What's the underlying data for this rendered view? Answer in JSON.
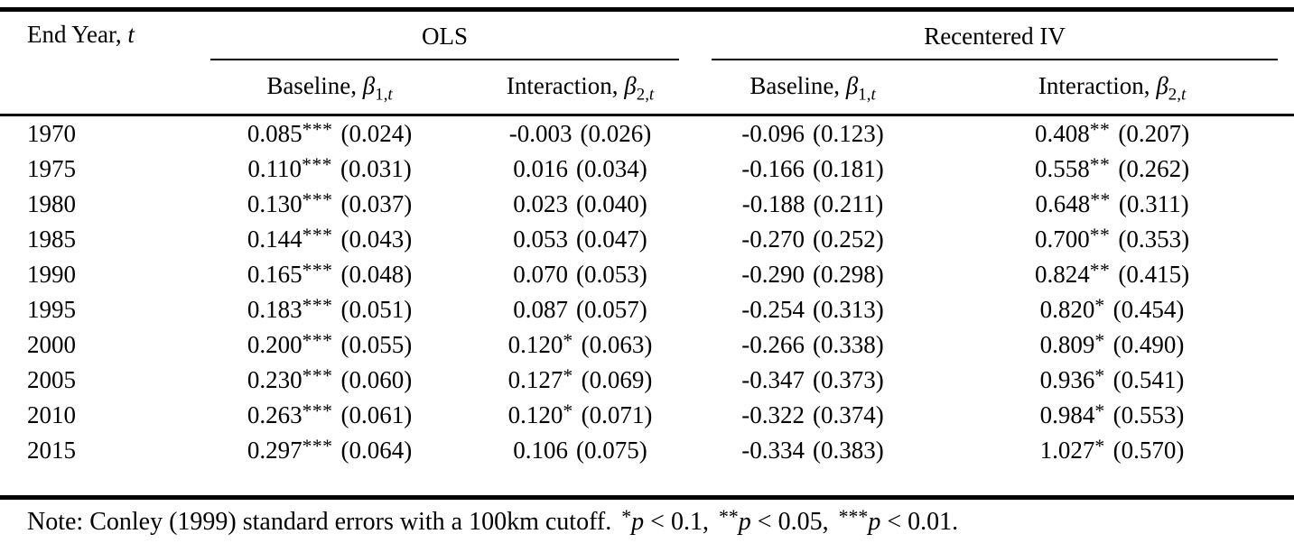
{
  "table": {
    "year_header": {
      "prefix": "End Year,",
      "var": "t"
    },
    "groups": [
      {
        "label": "OLS"
      },
      {
        "label": "Recentered IV"
      }
    ],
    "columns": [
      {
        "prefix": "Baseline,",
        "symbol": "β",
        "sub_num": "1,",
        "sub_var": "t"
      },
      {
        "prefix": "Interaction,",
        "symbol": "β",
        "sub_num": "2,",
        "sub_var": "t"
      },
      {
        "prefix": "Baseline,",
        "symbol": "β",
        "sub_num": "1,",
        "sub_var": "t"
      },
      {
        "prefix": "Interaction,",
        "symbol": "β",
        "sub_num": "2,",
        "sub_var": "t"
      }
    ],
    "rows": [
      {
        "year": "1970",
        "cells": [
          {
            "e": "0.085",
            "s": "***",
            "se": "(0.024)"
          },
          {
            "e": "-0.003",
            "s": "",
            "se": "(0.026)"
          },
          {
            "e": "-0.096",
            "s": "",
            "se": "(0.123)"
          },
          {
            "e": "0.408",
            "s": "**",
            "se": "(0.207)"
          }
        ]
      },
      {
        "year": "1975",
        "cells": [
          {
            "e": "0.110",
            "s": "***",
            "se": "(0.031)"
          },
          {
            "e": "0.016",
            "s": "",
            "se": "(0.034)"
          },
          {
            "e": "-0.166",
            "s": "",
            "se": "(0.181)"
          },
          {
            "e": "0.558",
            "s": "**",
            "se": "(0.262)"
          }
        ]
      },
      {
        "year": "1980",
        "cells": [
          {
            "e": "0.130",
            "s": "***",
            "se": "(0.037)"
          },
          {
            "e": "0.023",
            "s": "",
            "se": "(0.040)"
          },
          {
            "e": "-0.188",
            "s": "",
            "se": "(0.211)"
          },
          {
            "e": "0.648",
            "s": "**",
            "se": "(0.311)"
          }
        ]
      },
      {
        "year": "1985",
        "cells": [
          {
            "e": "0.144",
            "s": "***",
            "se": "(0.043)"
          },
          {
            "e": "0.053",
            "s": "",
            "se": "(0.047)"
          },
          {
            "e": "-0.270",
            "s": "",
            "se": "(0.252)"
          },
          {
            "e": "0.700",
            "s": "**",
            "se": "(0.353)"
          }
        ]
      },
      {
        "year": "1990",
        "cells": [
          {
            "e": "0.165",
            "s": "***",
            "se": "(0.048)"
          },
          {
            "e": "0.070",
            "s": "",
            "se": "(0.053)"
          },
          {
            "e": "-0.290",
            "s": "",
            "se": "(0.298)"
          },
          {
            "e": "0.824",
            "s": "**",
            "se": "(0.415)"
          }
        ]
      },
      {
        "year": "1995",
        "cells": [
          {
            "e": "0.183",
            "s": "***",
            "se": "(0.051)"
          },
          {
            "e": "0.087",
            "s": "",
            "se": "(0.057)"
          },
          {
            "e": "-0.254",
            "s": "",
            "se": "(0.313)"
          },
          {
            "e": "0.820",
            "s": "*",
            "se": "(0.454)"
          }
        ]
      },
      {
        "year": "2000",
        "cells": [
          {
            "e": "0.200",
            "s": "***",
            "se": "(0.055)"
          },
          {
            "e": "0.120",
            "s": "*",
            "se": "(0.063)"
          },
          {
            "e": "-0.266",
            "s": "",
            "se": "(0.338)"
          },
          {
            "e": "0.809",
            "s": "*",
            "se": "(0.490)"
          }
        ]
      },
      {
        "year": "2005",
        "cells": [
          {
            "e": "0.230",
            "s": "***",
            "se": "(0.060)"
          },
          {
            "e": "0.127",
            "s": "*",
            "se": "(0.069)"
          },
          {
            "e": "-0.347",
            "s": "",
            "se": "(0.373)"
          },
          {
            "e": "0.936",
            "s": "*",
            "se": "(0.541)"
          }
        ]
      },
      {
        "year": "2010",
        "cells": [
          {
            "e": "0.263",
            "s": "***",
            "se": "(0.061)"
          },
          {
            "e": "0.120",
            "s": "*",
            "se": "(0.071)"
          },
          {
            "e": "-0.322",
            "s": "",
            "se": "(0.374)"
          },
          {
            "e": "0.984",
            "s": "*",
            "se": "(0.553)"
          }
        ]
      },
      {
        "year": "2015",
        "cells": [
          {
            "e": "0.297",
            "s": "***",
            "se": "(0.064)"
          },
          {
            "e": "0.106",
            "s": "",
            "se": "(0.075)"
          },
          {
            "e": "-0.334",
            "s": "",
            "se": "(0.383)"
          },
          {
            "e": "1.027",
            "s": "*",
            "se": "(0.570)"
          }
        ]
      }
    ]
  },
  "note": {
    "prefix": "Note: Conley (1999) standard errors with a 100km cutoff.",
    "sig_levels": [
      {
        "stars": "*",
        "p": "p",
        "condition": "< 0.1,"
      },
      {
        "stars": "**",
        "p": "p",
        "condition": "< 0.05,"
      },
      {
        "stars": "***",
        "p": "p",
        "condition": "< 0.01."
      }
    ]
  }
}
